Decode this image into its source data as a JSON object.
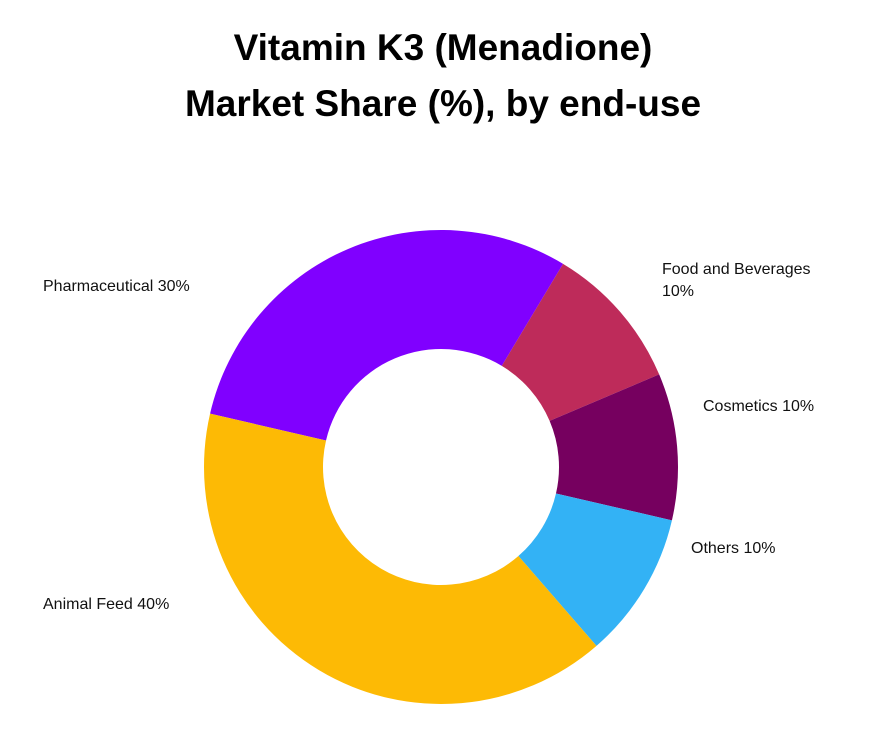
{
  "chart_data": {
    "type": "pie",
    "variant": "donut",
    "title": "Vitamin K3 (Menadione) Market Share (%), by end-use",
    "title_lines": [
      "Vitamin K3 (Menadione)",
      "Market Share (%), by end-use"
    ],
    "categories": [
      "Pharmaceutical",
      "Food and Beverages",
      "Cosmetics",
      "Others",
      "Animal Feed"
    ],
    "values": [
      30,
      10,
      10,
      10,
      40
    ],
    "unit": "%",
    "colors": [
      "#8000ff",
      "#be2b5a",
      "#76005f",
      "#33b2f5",
      "#fdba05"
    ],
    "labels": [
      {
        "category": "Pharmaceutical",
        "text": "Pharmaceutical 30%"
      },
      {
        "category": "Food and Beverages",
        "text_line1": "Food and Beverages",
        "text_line2": "10%"
      },
      {
        "category": "Cosmetics",
        "text": "Cosmetics 10%"
      },
      {
        "category": "Others",
        "text": "Others 10%"
      },
      {
        "category": "Animal Feed",
        "text": "Animal Feed 40%"
      }
    ],
    "legend": "none (direct labels)",
    "grid": false
  }
}
